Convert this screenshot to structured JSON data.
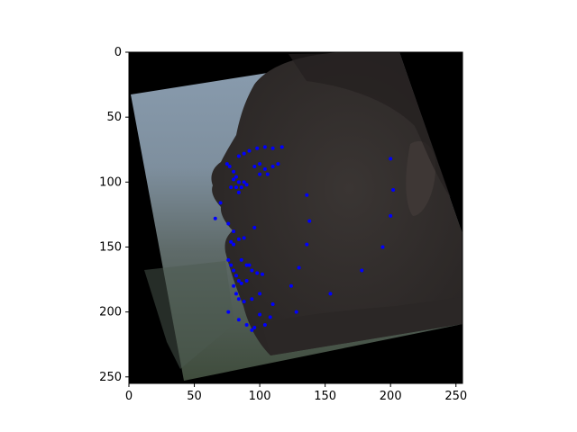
{
  "figure": {
    "image_description_icon": "rotated-face-photo",
    "background_color": "#000000",
    "landmark_color": "#0000ff"
  },
  "chart_data": {
    "type": "scatter",
    "xlim": [
      0,
      255
    ],
    "ylim": [
      255,
      0
    ],
    "x_tick_labels": [
      "0",
      "50",
      "100",
      "150",
      "200",
      "250"
    ],
    "y_tick_labels": [
      "0",
      "50",
      "100",
      "150",
      "200",
      "250"
    ],
    "x_ticks": [
      0,
      50,
      100,
      150,
      200,
      250
    ],
    "y_ticks": [
      0,
      50,
      100,
      150,
      200,
      250
    ],
    "grid": false,
    "series": [
      {
        "points": [
          [
            75,
            86
          ],
          [
            77,
            88
          ],
          [
            80,
            92
          ],
          [
            82,
            96
          ],
          [
            84,
            100
          ],
          [
            86,
            104
          ],
          [
            88,
            100
          ],
          [
            90,
            102
          ],
          [
            80,
            98
          ],
          [
            82,
            104
          ],
          [
            84,
            108
          ],
          [
            78,
            104
          ],
          [
            84,
            80
          ],
          [
            88,
            78
          ],
          [
            92,
            76
          ],
          [
            98,
            74
          ],
          [
            104,
            73
          ],
          [
            110,
            74
          ],
          [
            117,
            73
          ],
          [
            96,
            88
          ],
          [
            100,
            86
          ],
          [
            104,
            90
          ],
          [
            110,
            88
          ],
          [
            114,
            86
          ],
          [
            100,
            94
          ],
          [
            106,
            94
          ],
          [
            70,
            116
          ],
          [
            66,
            128
          ],
          [
            76,
            132
          ],
          [
            80,
            138
          ],
          [
            84,
            144
          ],
          [
            88,
            143
          ],
          [
            96,
            135
          ],
          [
            78,
            146
          ],
          [
            80,
            148
          ],
          [
            76,
            160
          ],
          [
            78,
            164
          ],
          [
            80,
            168
          ],
          [
            82,
            172
          ],
          [
            84,
            176
          ],
          [
            86,
            178
          ],
          [
            90,
            176
          ],
          [
            94,
            168
          ],
          [
            98,
            170
          ],
          [
            102,
            171
          ],
          [
            90,
            164
          ],
          [
            86,
            160
          ],
          [
            92,
            164
          ],
          [
            80,
            180
          ],
          [
            82,
            186
          ],
          [
            84,
            190
          ],
          [
            88,
            192
          ],
          [
            94,
            190
          ],
          [
            100,
            186
          ],
          [
            76,
            200
          ],
          [
            84,
            206
          ],
          [
            90,
            210
          ],
          [
            96,
            212
          ],
          [
            104,
            210
          ],
          [
            108,
            204
          ],
          [
            100,
            202
          ],
          [
            94,
            214
          ],
          [
            110,
            194
          ],
          [
            124,
            180
          ],
          [
            130,
            166
          ],
          [
            128,
            200
          ],
          [
            136,
            148
          ],
          [
            138,
            130
          ],
          [
            136,
            110
          ],
          [
            154,
            186
          ],
          [
            178,
            168
          ],
          [
            194,
            150
          ],
          [
            200,
            126
          ],
          [
            202,
            106
          ],
          [
            200,
            82
          ]
        ]
      }
    ]
  }
}
